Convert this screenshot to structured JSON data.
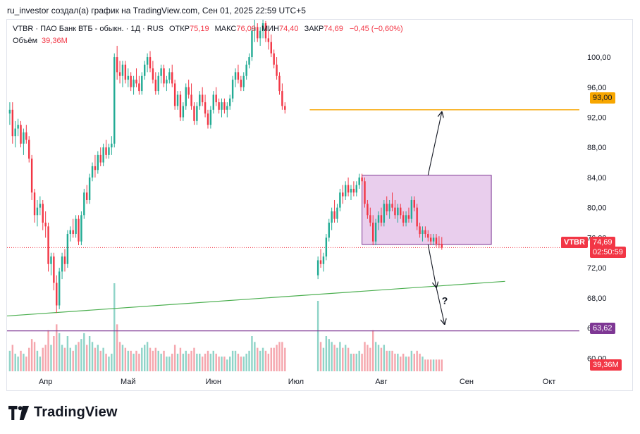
{
  "caption": "ru_investor создал(а) график на TradingView.com, Сен 01, 2025 22:59 UTC+5",
  "legend": {
    "symbol": "VTBR · ПАО Банк ВТБ - обыкн. · 1Д · RUS",
    "open_label": "ОТКР",
    "open_value": "75,19",
    "high_label": "МАКС",
    "high_value": "76,09",
    "low_label": "МИН",
    "low_value": "74,40",
    "close_label": "ЗАКР",
    "close_value": "74,69",
    "change": "−0,45 (−0,60%)",
    "volume_label": "Объём",
    "volume_value": "39,36M"
  },
  "price_tags": {
    "sym": "VTBR",
    "last": "74,69",
    "countdown": "02:50:59",
    "level_top": "93,00",
    "level_bottom": "63,62",
    "volume": "39,36M"
  },
  "annotation_question": "?",
  "logo_text": "TradingView",
  "colors": {
    "up": "#22ab94",
    "down": "#f23645",
    "orange": "#f7a600",
    "purple": "#7e3794",
    "box_fill": "#e1bee7",
    "trend": "#4caf50"
  },
  "chart_data": {
    "type": "candlestick",
    "symbol": "VTBR",
    "y_ticks": [
      "60,00",
      "64,00",
      "68,00",
      "72,00",
      "76,00",
      "80,00",
      "84,00",
      "88,00",
      "92,00",
      "96,00",
      "100,00"
    ],
    "y_tick_values": [
      60,
      64,
      68,
      72,
      76,
      80,
      84,
      88,
      92,
      96,
      100
    ],
    "ylim": [
      58.9,
      104.5
    ],
    "x_ticks": [
      {
        "label": "Апр",
        "day": 0
      },
      {
        "label": "Май",
        "day": 30
      },
      {
        "label": "Июн",
        "day": 61
      },
      {
        "label": "Июл",
        "day": 91
      },
      {
        "label": "Авг",
        "day": 122
      },
      {
        "label": "Сен",
        "day": 153
      },
      {
        "label": "Окт",
        "day": 183
      }
    ],
    "xlim_days": [
      -14,
      194
    ],
    "levels": [
      {
        "name": "orange-level",
        "value": 93.0,
        "start_day": 96,
        "color": "#f7a600"
      },
      {
        "name": "purple-level",
        "value": 63.62,
        "start_day": -14,
        "color": "#7e3794"
      }
    ],
    "trendline": {
      "from": {
        "day": -14,
        "value": 65.6
      },
      "to": {
        "day": 167,
        "value": 70.2
      }
    },
    "box": {
      "from_day": 115,
      "to_day": 162,
      "top": 84.3,
      "bottom": 75.1
    },
    "arrows": [
      {
        "from": {
          "day": 139,
          "value": 84.3
        },
        "to": {
          "day": 144,
          "value": 92.7
        }
      },
      {
        "from": {
          "day": 139,
          "value": 75.1
        },
        "to": {
          "day": 142,
          "value": 69.4
        }
      },
      {
        "from": {
          "day": 142,
          "value": 69.4
        },
        "to": {
          "day": 145,
          "value": 64.5
        }
      }
    ],
    "last_price": 74.69,
    "candles": [
      [
        -13,
        92.5,
        94.0,
        91.0,
        93.0,
        7
      ],
      [
        -12,
        93.0,
        94.0,
        88.5,
        89.5,
        9
      ],
      [
        -11,
        89.5,
        91.5,
        88.0,
        90.5,
        6
      ],
      [
        -10,
        90.5,
        91.8,
        89.5,
        91.0,
        5
      ],
      [
        -9,
        91.0,
        91.5,
        88.0,
        88.5,
        7
      ],
      [
        -8,
        88.5,
        90.5,
        87.0,
        90.0,
        6
      ],
      [
        -7,
        90.0,
        91.0,
        88.5,
        89.0,
        5
      ],
      [
        -6,
        89.0,
        89.5,
        86.0,
        86.5,
        8
      ],
      [
        -5,
        86.5,
        87.0,
        81.0,
        82.0,
        11
      ],
      [
        -4,
        82.0,
        82.5,
        78.0,
        79.0,
        10
      ],
      [
        -3,
        79.0,
        81.0,
        77.5,
        80.0,
        7
      ],
      [
        -2,
        80.0,
        81.5,
        79.0,
        80.5,
        5
      ],
      [
        -1,
        80.5,
        81.0,
        77.0,
        78.0,
        8
      ],
      [
        0,
        78.0,
        79.5,
        76.0,
        77.5,
        9
      ],
      [
        1,
        77.5,
        78.0,
        71.5,
        72.5,
        14
      ],
      [
        2,
        72.5,
        74.0,
        71.0,
        73.5,
        9
      ],
      [
        3,
        73.5,
        74.0,
        69.0,
        70.0,
        12
      ],
      [
        4,
        70.0,
        71.0,
        66.0,
        67.0,
        16
      ],
      [
        5,
        67.0,
        72.0,
        66.5,
        71.5,
        13
      ],
      [
        6,
        71.5,
        74.0,
        70.5,
        73.5,
        9
      ],
      [
        7,
        73.5,
        74.5,
        71.5,
        72.5,
        8
      ],
      [
        8,
        72.5,
        77.0,
        72.0,
        76.5,
        12
      ],
      [
        9,
        76.5,
        77.5,
        75.5,
        77.0,
        8
      ],
      [
        10,
        77.0,
        78.5,
        76.0,
        76.5,
        7
      ],
      [
        11,
        76.5,
        79.0,
        76.0,
        78.5,
        9
      ],
      [
        12,
        78.5,
        79.0,
        75.0,
        75.5,
        10
      ],
      [
        13,
        75.5,
        79.5,
        75.0,
        79.0,
        11
      ],
      [
        14,
        79.0,
        82.5,
        78.5,
        82.0,
        13
      ],
      [
        15,
        82.0,
        83.0,
        80.5,
        81.0,
        9
      ],
      [
        16,
        81.0,
        84.5,
        80.5,
        84.0,
        12
      ],
      [
        17,
        84.0,
        86.0,
        83.5,
        85.5,
        10
      ],
      [
        18,
        85.5,
        87.0,
        84.0,
        85.0,
        8
      ],
      [
        19,
        85.0,
        87.5,
        84.5,
        87.0,
        9
      ],
      [
        20,
        87.0,
        88.0,
        85.5,
        86.0,
        7
      ],
      [
        21,
        86.0,
        88.5,
        85.5,
        88.0,
        8
      ],
      [
        22,
        88.0,
        89.0,
        86.5,
        87.0,
        6
      ],
      [
        23,
        87.0,
        88.5,
        86.5,
        88.0,
        5
      ],
      [
        24,
        88.0,
        89.5,
        87.0,
        88.5,
        6
      ],
      [
        25,
        88.5,
        100.5,
        88.0,
        100.0,
        30
      ],
      [
        26,
        100.0,
        101.5,
        97.0,
        98.0,
        16
      ],
      [
        27,
        98.0,
        99.5,
        96.5,
        97.5,
        10
      ],
      [
        28,
        97.5,
        99.5,
        96.0,
        99.0,
        9
      ],
      [
        29,
        99.0,
        99.5,
        96.5,
        97.0,
        8
      ],
      [
        30,
        97.0,
        98.5,
        96.0,
        97.5,
        7
      ],
      [
        31,
        97.5,
        98.0,
        95.5,
        96.0,
        7
      ],
      [
        32,
        96.0,
        97.5,
        95.0,
        97.0,
        6
      ],
      [
        33,
        97.0,
        98.5,
        96.0,
        96.5,
        7
      ],
      [
        34,
        96.5,
        97.5,
        95.0,
        95.5,
        6
      ],
      [
        35,
        95.5,
        98.0,
        95.0,
        97.5,
        8
      ],
      [
        36,
        97.5,
        99.5,
        97.0,
        99.0,
        9
      ],
      [
        37,
        99.0,
        100.5,
        98.0,
        100.0,
        10
      ],
      [
        38,
        100.0,
        100.8,
        98.0,
        98.5,
        8
      ],
      [
        39,
        98.5,
        99.5,
        96.5,
        97.0,
        7
      ],
      [
        40,
        97.0,
        98.0,
        95.0,
        95.5,
        8
      ],
      [
        41,
        95.5,
        98.0,
        95.0,
        97.5,
        7
      ],
      [
        42,
        97.5,
        99.0,
        96.5,
        98.5,
        6
      ],
      [
        43,
        98.5,
        99.0,
        96.0,
        96.5,
        7
      ],
      [
        44,
        96.5,
        97.5,
        95.5,
        97.0,
        5
      ],
      [
        45,
        97.0,
        98.5,
        96.5,
        98.0,
        5
      ],
      [
        46,
        98.0,
        99.0,
        96.0,
        96.5,
        6
      ],
      [
        47,
        96.5,
        97.0,
        93.0,
        93.5,
        9
      ],
      [
        48,
        93.5,
        95.5,
        93.0,
        95.0,
        6
      ],
      [
        49,
        95.0,
        95.5,
        91.5,
        92.0,
        8
      ],
      [
        50,
        92.0,
        94.0,
        91.5,
        93.5,
        6
      ],
      [
        51,
        93.5,
        96.5,
        93.0,
        96.0,
        7
      ],
      [
        52,
        96.0,
        97.0,
        94.5,
        95.0,
        6
      ],
      [
        53,
        95.0,
        96.5,
        93.0,
        93.5,
        7
      ],
      [
        54,
        93.5,
        94.0,
        91.0,
        91.5,
        8
      ],
      [
        55,
        91.5,
        94.0,
        91.0,
        93.5,
        6
      ],
      [
        56,
        93.5,
        95.5,
        93.0,
        95.0,
        6
      ],
      [
        57,
        95.0,
        96.0,
        93.5,
        94.0,
        5
      ],
      [
        58,
        94.0,
        95.0,
        92.0,
        92.5,
        6
      ],
      [
        59,
        92.5,
        93.0,
        90.5,
        91.0,
        7
      ],
      [
        60,
        91.0,
        93.5,
        90.5,
        93.0,
        6
      ],
      [
        61,
        93.0,
        95.5,
        92.5,
        95.0,
        7
      ],
      [
        62,
        95.0,
        96.0,
        93.5,
        94.0,
        6
      ],
      [
        63,
        94.0,
        94.5,
        92.5,
        93.0,
        5
      ],
      [
        64,
        93.0,
        94.5,
        92.0,
        94.0,
        5
      ],
      [
        65,
        94.0,
        94.5,
        92.5,
        93.0,
        5
      ],
      [
        66,
        93.0,
        94.0,
        92.0,
        93.5,
        4
      ],
      [
        67,
        93.5,
        95.0,
        93.0,
        94.5,
        5
      ],
      [
        68,
        94.5,
        97.5,
        94.0,
        97.0,
        7
      ],
      [
        69,
        97.0,
        98.5,
        96.0,
        98.0,
        7
      ],
      [
        70,
        98.0,
        99.0,
        96.5,
        97.0,
        6
      ],
      [
        71,
        97.0,
        97.5,
        95.5,
        96.0,
        5
      ],
      [
        72,
        96.0,
        98.0,
        95.5,
        97.5,
        5
      ],
      [
        73,
        97.5,
        99.5,
        97.0,
        99.0,
        6
      ],
      [
        74,
        99.0,
        100.5,
        98.5,
        100.0,
        7
      ],
      [
        75,
        100.0,
        104.0,
        99.5,
        103.5,
        12
      ],
      [
        76,
        103.5,
        105.5,
        102.0,
        104.0,
        10
      ],
      [
        77,
        104.0,
        104.5,
        102.0,
        102.5,
        8
      ],
      [
        78,
        102.5,
        104.0,
        101.5,
        103.5,
        7
      ],
      [
        79,
        103.5,
        105.0,
        102.5,
        104.5,
        8
      ],
      [
        80,
        104.5,
        104.8,
        102.0,
        102.5,
        7
      ],
      [
        81,
        102.5,
        103.5,
        101.0,
        102.0,
        6
      ],
      [
        82,
        102.0,
        103.0,
        100.0,
        100.5,
        8
      ],
      [
        83,
        100.5,
        101.0,
        98.5,
        99.0,
        8
      ],
      [
        84,
        99.0,
        100.0,
        97.0,
        97.5,
        9
      ],
      [
        85,
        97.5,
        98.0,
        95.0,
        95.5,
        10
      ],
      [
        86,
        95.5,
        96.5,
        93.0,
        93.5,
        10
      ],
      [
        87,
        93.5,
        94.0,
        92.5,
        93.0,
        8
      ],
      [
        99,
        71.0,
        73.5,
        70.5,
        73.0,
        24
      ],
      [
        100,
        73.0,
        74.5,
        72.0,
        72.5,
        10
      ],
      [
        101,
        72.5,
        74.0,
        71.5,
        73.5,
        8
      ],
      [
        102,
        73.5,
        76.5,
        73.0,
        76.0,
        12
      ],
      [
        103,
        76.0,
        78.5,
        75.5,
        78.0,
        11
      ],
      [
        104,
        78.0,
        80.0,
        77.0,
        79.5,
        10
      ],
      [
        105,
        79.5,
        81.0,
        78.0,
        78.5,
        9
      ],
      [
        106,
        78.5,
        80.5,
        78.0,
        80.0,
        8
      ],
      [
        107,
        80.0,
        82.5,
        79.5,
        82.0,
        10
      ],
      [
        108,
        82.0,
        83.0,
        80.5,
        81.5,
        8
      ],
      [
        109,
        81.5,
        83.5,
        81.0,
        83.0,
        9
      ],
      [
        110,
        83.0,
        84.0,
        81.5,
        82.0,
        8
      ],
      [
        111,
        82.0,
        83.0,
        81.0,
        82.5,
        6
      ],
      [
        112,
        82.5,
        83.5,
        81.5,
        82.0,
        6
      ],
      [
        113,
        82.0,
        83.5,
        81.5,
        83.0,
        6
      ],
      [
        114,
        83.0,
        84.5,
        82.5,
        84.0,
        7
      ],
      [
        115,
        84.0,
        84.5,
        83.0,
        83.5,
        6
      ],
      [
        116,
        83.5,
        84.0,
        80.0,
        80.5,
        10
      ],
      [
        117,
        80.5,
        81.0,
        78.5,
        79.0,
        9
      ],
      [
        118,
        79.0,
        80.0,
        77.5,
        78.0,
        8
      ],
      [
        119,
        78.0,
        79.0,
        75.0,
        75.5,
        14
      ],
      [
        120,
        75.5,
        78.5,
        75.0,
        78.0,
        10
      ],
      [
        121,
        78.0,
        79.5,
        77.0,
        79.0,
        9
      ],
      [
        122,
        79.0,
        80.0,
        77.5,
        78.0,
        8
      ],
      [
        123,
        78.0,
        81.0,
        77.5,
        80.5,
        9
      ],
      [
        124,
        80.5,
        81.5,
        79.0,
        79.5,
        7
      ],
      [
        125,
        79.5,
        81.0,
        78.5,
        80.5,
        7
      ],
      [
        126,
        80.5,
        82.0,
        79.5,
        80.0,
        7
      ],
      [
        127,
        80.0,
        81.0,
        78.5,
        79.0,
        6
      ],
      [
        128,
        79.0,
        80.5,
        78.0,
        80.0,
        6
      ],
      [
        129,
        80.0,
        80.5,
        78.5,
        79.0,
        5
      ],
      [
        130,
        79.0,
        79.5,
        77.5,
        78.0,
        6
      ],
      [
        131,
        78.0,
        79.5,
        77.5,
        79.0,
        5
      ],
      [
        132,
        79.0,
        80.0,
        78.0,
        78.5,
        5
      ],
      [
        133,
        78.5,
        81.5,
        78.0,
        81.0,
        7
      ],
      [
        134,
        81.0,
        81.5,
        79.5,
        80.0,
        6
      ],
      [
        135,
        80.0,
        80.5,
        77.0,
        77.5,
        7
      ],
      [
        136,
        77.5,
        78.0,
        76.0,
        76.5,
        6
      ],
      [
        137,
        76.5,
        77.5,
        75.5,
        77.0,
        5
      ],
      [
        138,
        77.0,
        77.5,
        76.0,
        76.5,
        4
      ],
      [
        139,
        76.5,
        77.0,
        75.5,
        76.0,
        4
      ],
      [
        140,
        76.0,
        76.5,
        75.0,
        75.5,
        4
      ],
      [
        141,
        75.5,
        76.5,
        75.0,
        76.0,
        4
      ],
      [
        142,
        76.0,
        76.5,
        74.8,
        75.2,
        4
      ],
      [
        143,
        75.2,
        76.2,
        74.6,
        75.19,
        4
      ],
      [
        144,
        75.19,
        76.09,
        74.4,
        74.69,
        4
      ]
    ]
  }
}
